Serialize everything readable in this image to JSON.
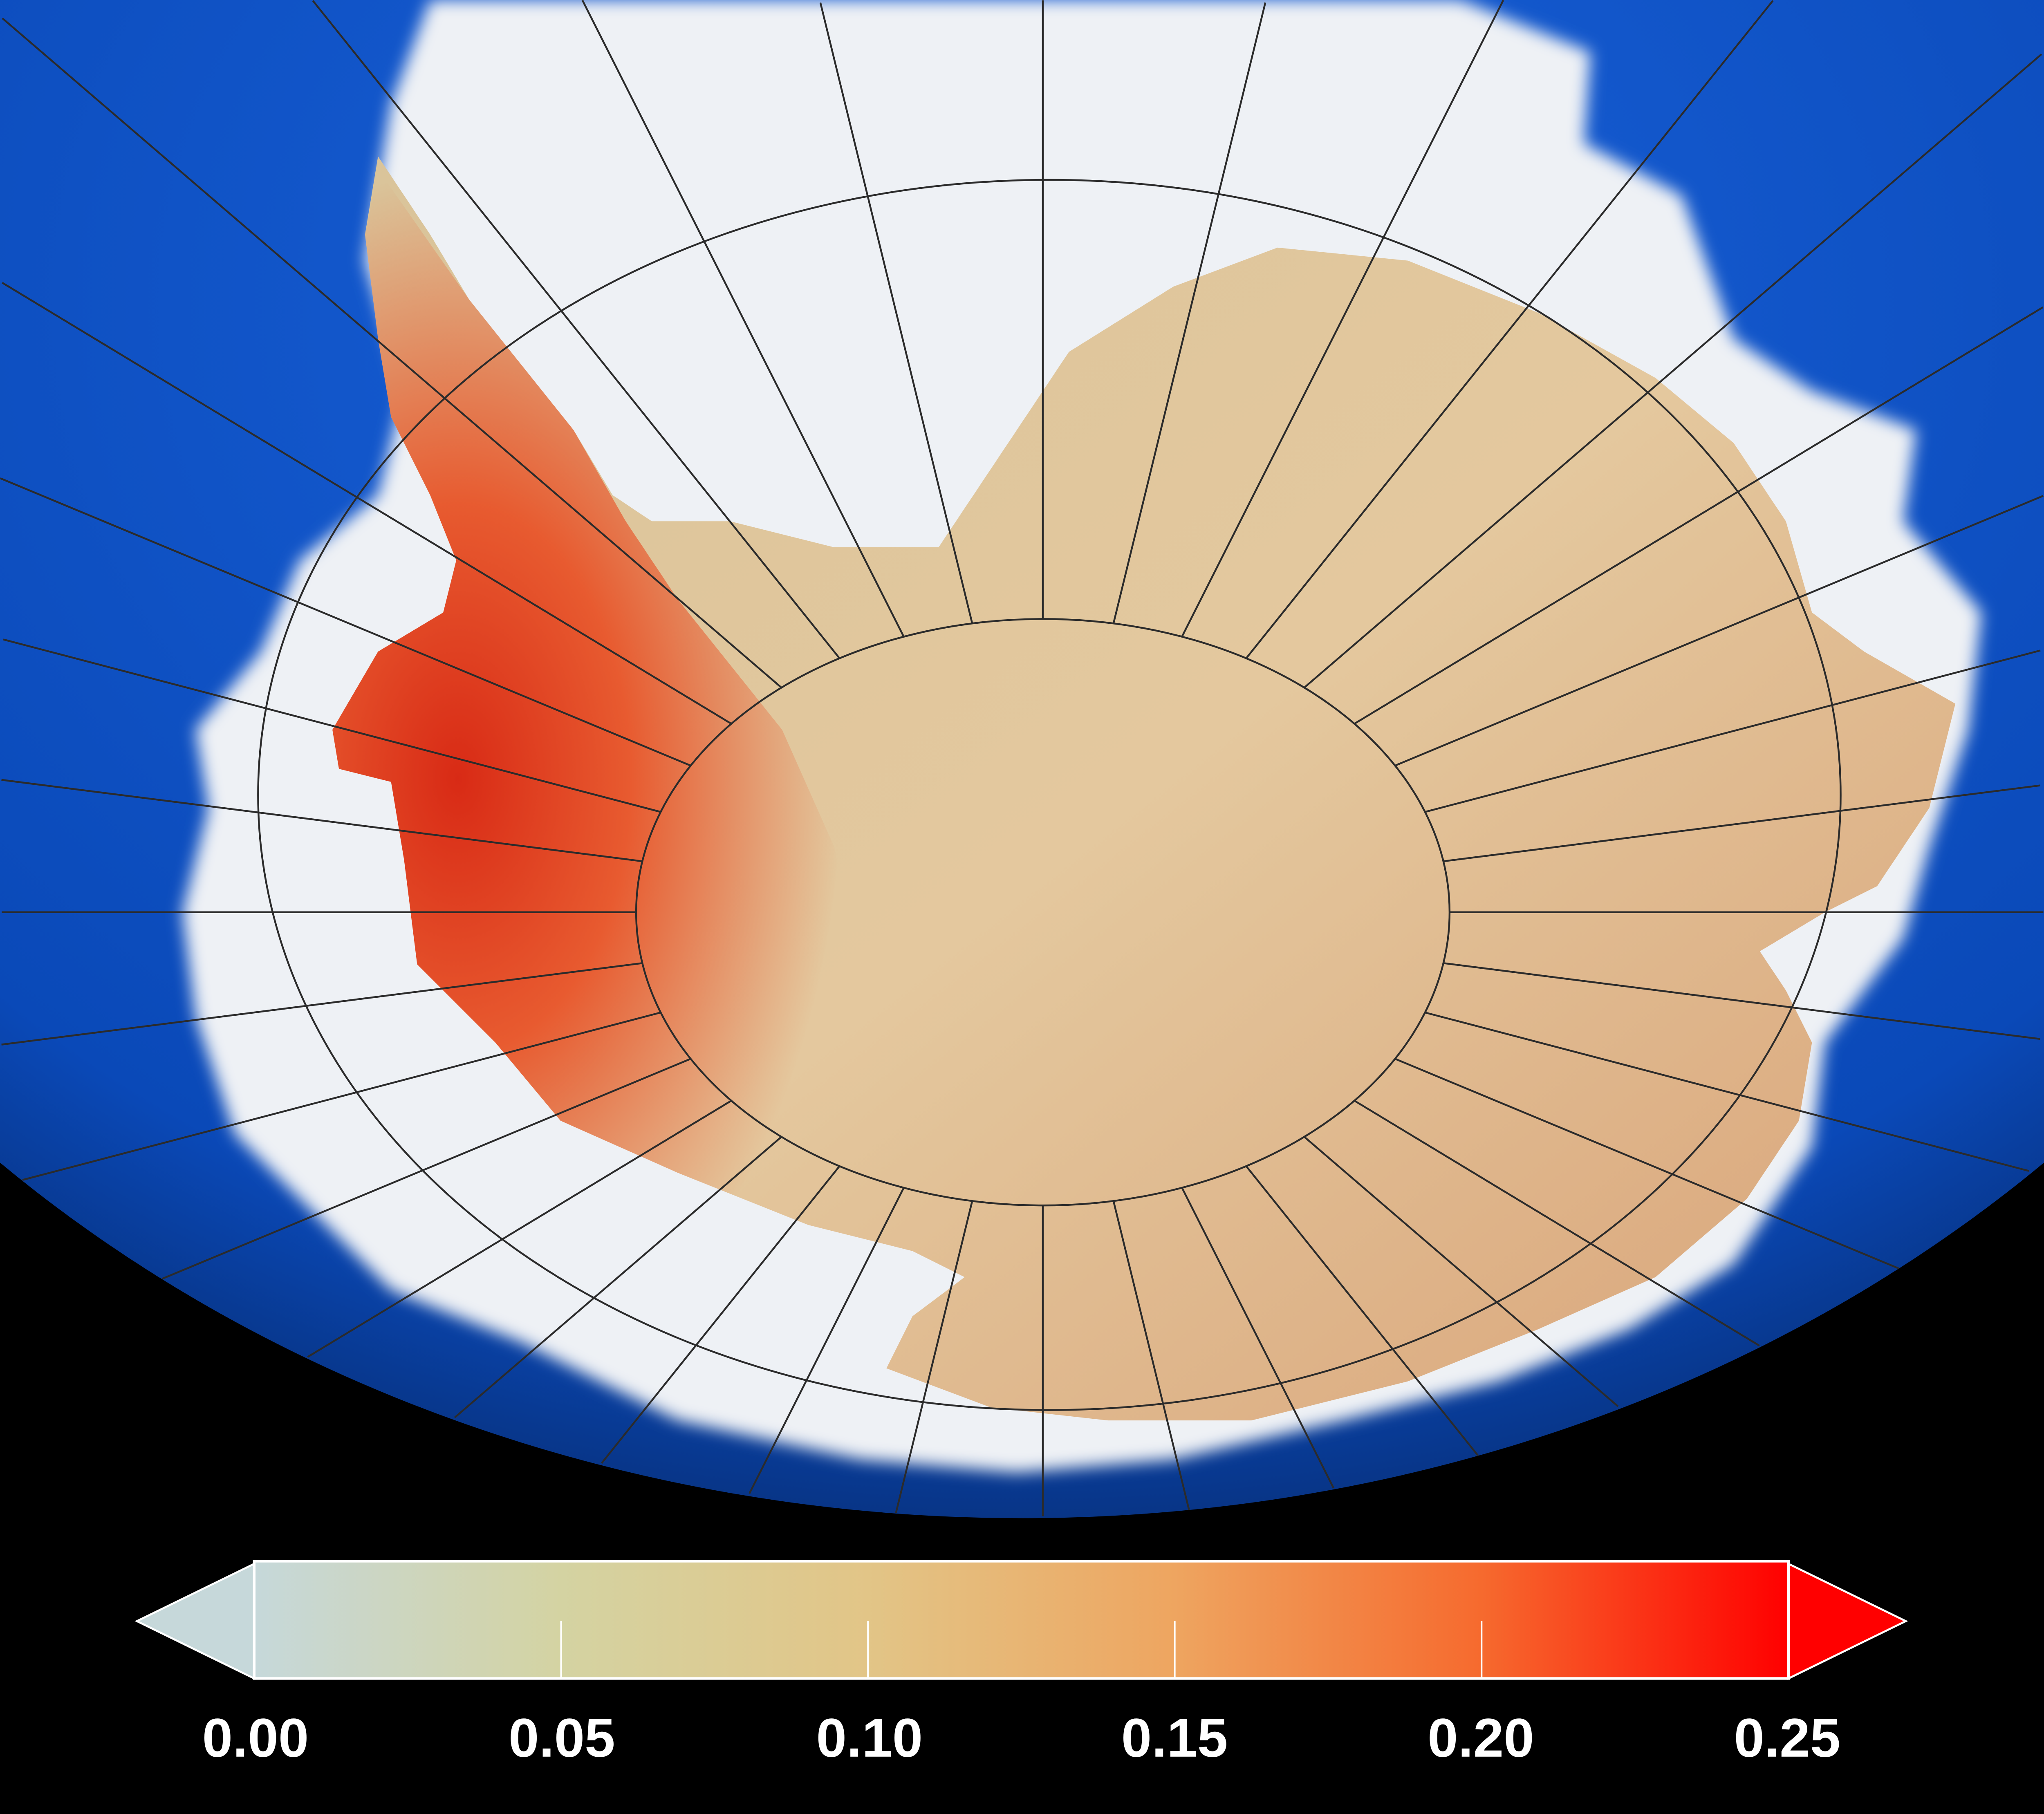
{
  "map": {
    "projection": "orthographic",
    "region": "Antarctica",
    "colors": {
      "ocean": "#0b4fc4",
      "sea_ice": "#eef2f6",
      "background": "#000000",
      "graticule": "#2a2a2a"
    }
  },
  "colorbar": {
    "min": 0.0,
    "max": 0.25,
    "extend": "both",
    "ticks": [
      "0.00",
      "0.05",
      "0.10",
      "0.15",
      "0.20",
      "0.25"
    ],
    "colors": [
      "#c6d8da",
      "#d4d3a2",
      "#e2c587",
      "#eea560",
      "#f66a2e",
      "#ff0000"
    ],
    "low_extension_color": "#c6d8da",
    "high_extension_color": "#ff0000"
  }
}
